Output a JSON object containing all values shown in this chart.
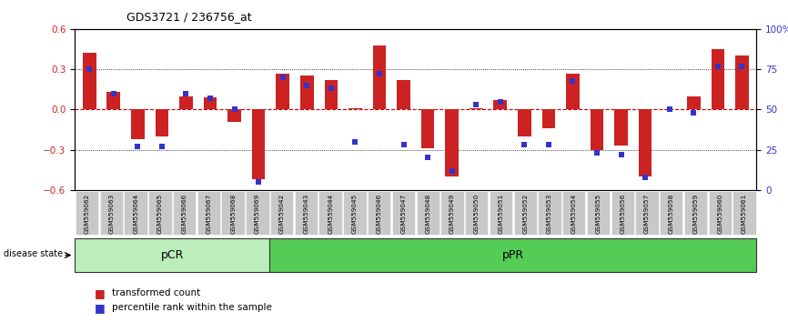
{
  "title": "GDS3721 / 236756_at",
  "samples": [
    "GSM559062",
    "GSM559063",
    "GSM559064",
    "GSM559065",
    "GSM559066",
    "GSM559067",
    "GSM559068",
    "GSM559069",
    "GSM559042",
    "GSM559043",
    "GSM559044",
    "GSM559045",
    "GSM559046",
    "GSM559047",
    "GSM559048",
    "GSM559049",
    "GSM559050",
    "GSM559051",
    "GSM559052",
    "GSM559053",
    "GSM559054",
    "GSM559055",
    "GSM559056",
    "GSM559057",
    "GSM559058",
    "GSM559059",
    "GSM559060",
    "GSM559061"
  ],
  "red_values": [
    0.42,
    0.13,
    -0.22,
    -0.2,
    0.1,
    0.09,
    -0.09,
    -0.52,
    0.27,
    0.25,
    0.22,
    0.01,
    0.48,
    0.22,
    -0.29,
    -0.5,
    0.01,
    0.07,
    -0.2,
    -0.14,
    0.27,
    -0.3,
    -0.27,
    -0.5,
    0.0,
    0.1,
    0.45,
    0.4
  ],
  "blue_values": [
    75,
    60,
    27,
    27,
    60,
    57,
    50,
    5,
    70,
    65,
    63,
    30,
    72,
    28,
    20,
    12,
    53,
    55,
    28,
    28,
    68,
    23,
    22,
    8,
    50,
    48,
    77,
    77
  ],
  "pCR_count": 8,
  "pPR_count": 20,
  "ylim": [
    -0.6,
    0.6
  ],
  "yticks_left": [
    -0.6,
    -0.3,
    0.0,
    0.3,
    0.6
  ],
  "yticks_right": [
    0,
    25,
    50,
    75,
    100
  ],
  "ytick_labels_right": [
    "0",
    "25",
    "50",
    "75",
    "100%"
  ],
  "bar_color_red": "#cc2222",
  "bar_color_blue": "#3333cc",
  "pCR_color": "#bbeebb",
  "pPR_color": "#55cc55",
  "zero_line_color": "#cc0000",
  "bg_color": "#ffffff"
}
